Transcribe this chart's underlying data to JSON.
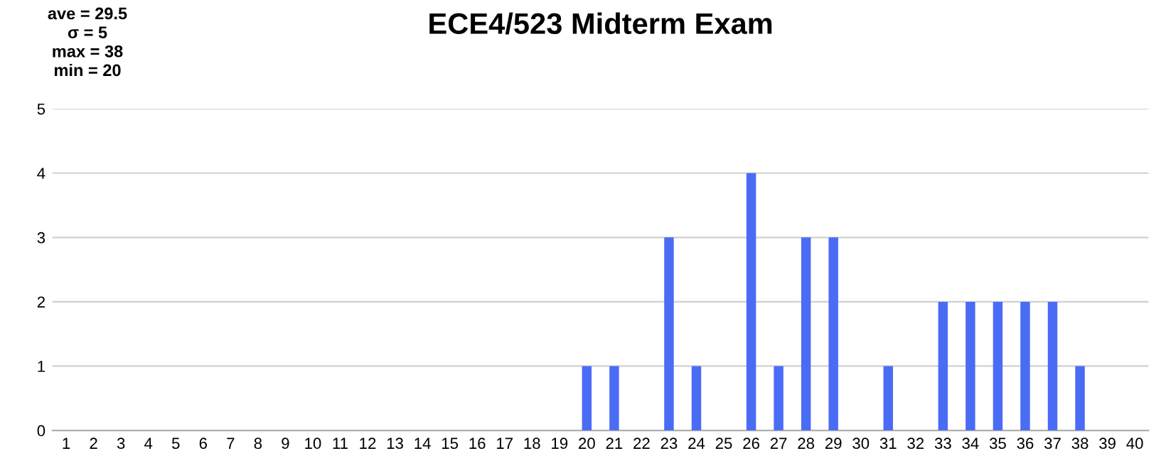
{
  "chart_data": {
    "type": "bar",
    "title": "ECE4/523 Midterm Exam",
    "annotations": [
      "ave = 29.5",
      "σ = 5",
      "max = 38",
      "min = 20"
    ],
    "categories": [
      "1",
      "2",
      "3",
      "4",
      "5",
      "6",
      "7",
      "8",
      "9",
      "10",
      "11",
      "12",
      "13",
      "14",
      "15",
      "16",
      "17",
      "18",
      "19",
      "20",
      "21",
      "22",
      "23",
      "24",
      "25",
      "26",
      "27",
      "28",
      "29",
      "30",
      "31",
      "32",
      "33",
      "34",
      "35",
      "36",
      "37",
      "38",
      "39",
      "40"
    ],
    "values": [
      0,
      0,
      0,
      0,
      0,
      0,
      0,
      0,
      0,
      0,
      0,
      0,
      0,
      0,
      0,
      0,
      0,
      0,
      0,
      1,
      1,
      0,
      3,
      1,
      0,
      4,
      1,
      3,
      3,
      0,
      1,
      0,
      2,
      2,
      2,
      2,
      2,
      1,
      0,
      0
    ],
    "color": "#4a6cf5",
    "ylim": [
      0,
      5
    ],
    "yticks": [
      0,
      1,
      2,
      3,
      4,
      5
    ],
    "grid": "y",
    "legend": false
  }
}
